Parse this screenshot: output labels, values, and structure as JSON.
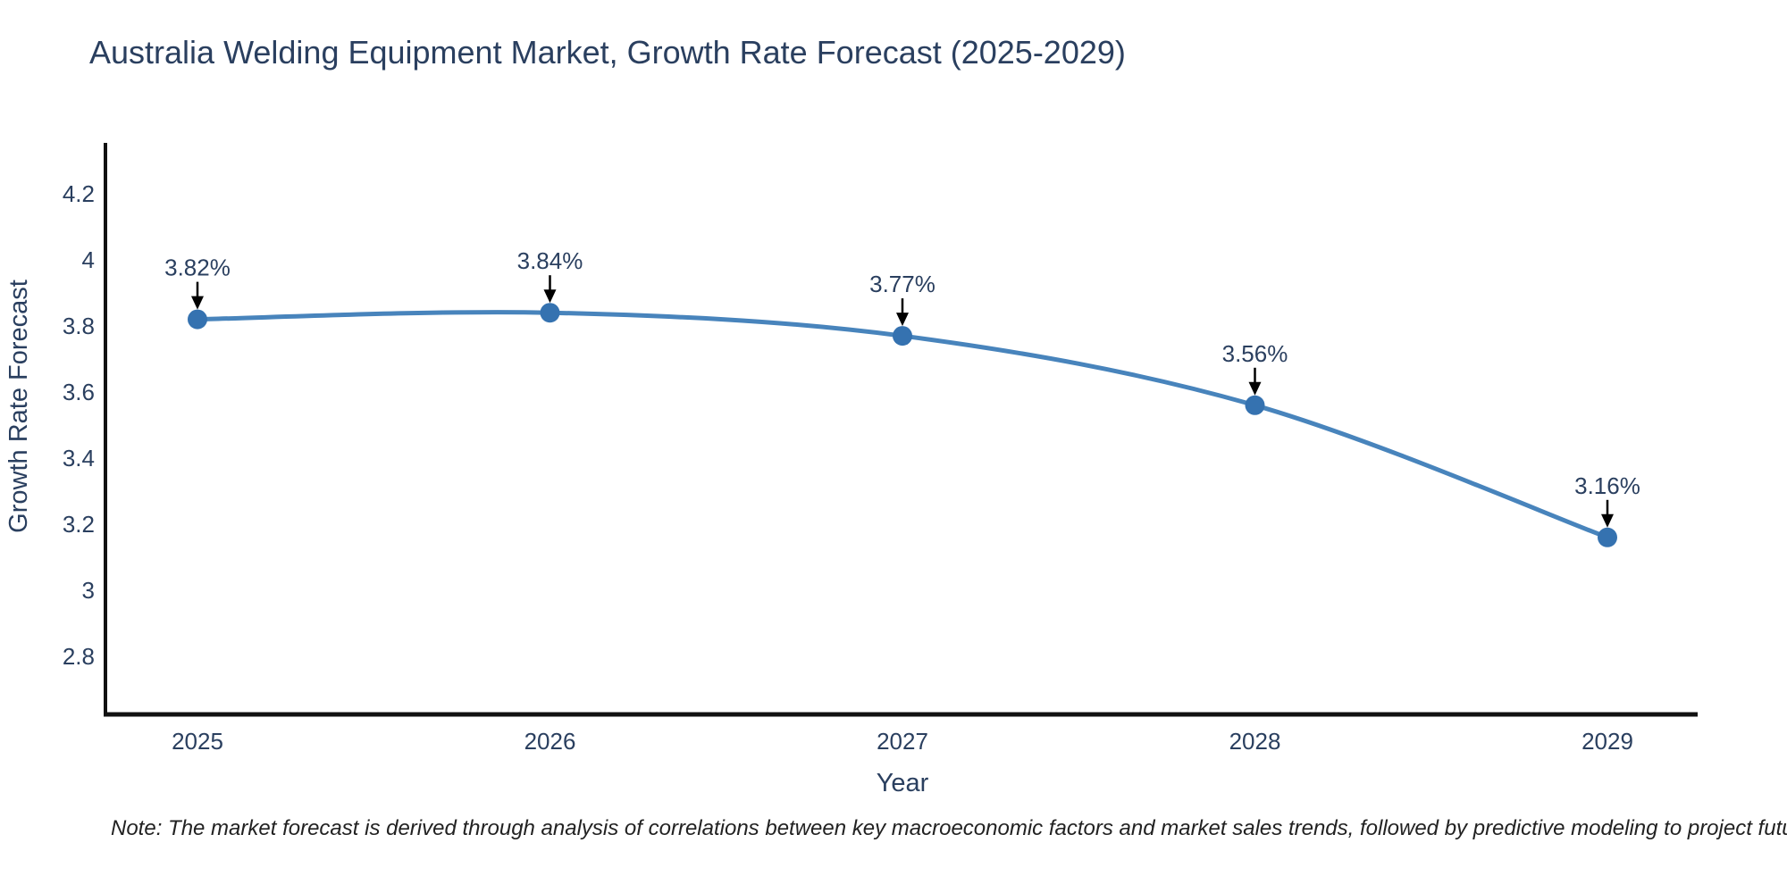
{
  "title": "Australia Welding Equipment Market, Growth Rate Forecast (2025-2029)",
  "note": "Note: The market forecast is derived through analysis of correlations between key macroeconomic factors and market sales trends, followed by predictive modeling to project future sales",
  "chart_data": {
    "type": "line",
    "title": "Australia Welding Equipment Market, Growth Rate Forecast (2025-2029)",
    "categories": [
      "2025",
      "2026",
      "2027",
      "2028",
      "2029"
    ],
    "x": [
      2025,
      2026,
      2027,
      2028,
      2029
    ],
    "values": [
      3.82,
      3.84,
      3.77,
      3.56,
      3.16
    ],
    "point_labels": [
      "3.82%",
      "3.84%",
      "3.77%",
      "3.56%",
      "3.16%"
    ],
    "xlabel": "Year",
    "ylabel": "Growth Rate Forecast",
    "ylim": [
      2.55,
      4.35
    ],
    "yticks": [
      2.8,
      3.0,
      3.2,
      3.4,
      3.6,
      3.8,
      4.0,
      4.2
    ],
    "ytick_labels": [
      "2.8",
      "3",
      "3.2",
      "3.4",
      "3.6",
      "3.8",
      "4",
      "4.2"
    ],
    "grid": false,
    "legend": "none",
    "line_shape": "spline",
    "colors": {
      "line": "#4884bc",
      "marker": "#3572b0",
      "axis": "#111111",
      "axis_text": "#2a3f5f",
      "annotation_text": "#2a3f5f",
      "annotation_arrow": "#000000",
      "background": "#ffffff"
    }
  }
}
